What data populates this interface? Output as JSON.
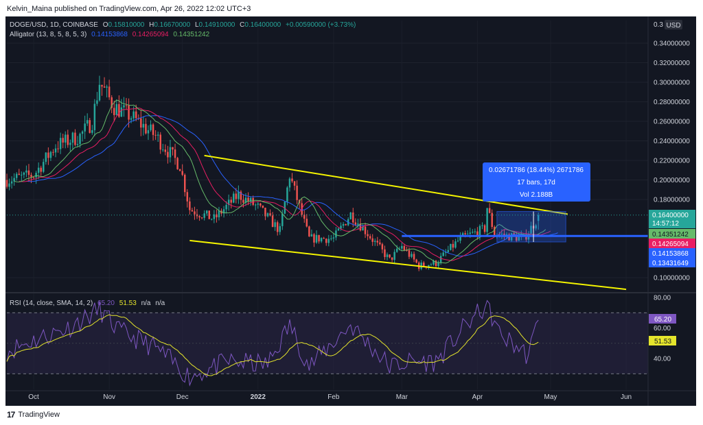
{
  "header": {
    "published": "Kelvin_Maina published on TradingView.com, Apr 26, 2022 12:02 UTC+3"
  },
  "legend": {
    "symbol": "DOGE/USD, 1D, COINBASE",
    "o_label": "O",
    "o_value": "0.15810000",
    "h_label": "H",
    "h_value": "0.16670000",
    "l_label": "L",
    "l_value": "0.14910000",
    "c_label": "C",
    "c_value": "0.16400000",
    "change": "+0.00590000 (+3.73%)",
    "alligator_label": "Alligator (13, 8, 5, 8, 5, 3)",
    "alligator_jaw": "0.14153868",
    "alligator_teeth": "0.14265094",
    "alligator_lips": "0.14351242"
  },
  "rsi_legend": {
    "label": "RSI (14, close, SMA, 14, 2)",
    "rsi": "65.20",
    "sma": "51.53",
    "na1": "n/a",
    "na2": "n/a"
  },
  "measure": {
    "line1": "0.02671786 (18.44%) 2671786",
    "line2": "17 bars, 17d",
    "line3": "Vol 2.188B"
  },
  "price_scale": {
    "currency": "USD",
    "top_label": "0.3",
    "ticks": [
      "0.34000000",
      "0.32000000",
      "0.30000000",
      "0.28000000",
      "0.26000000",
      "0.24000000",
      "0.22000000",
      "0.20000000",
      "0.18000000",
      "0.10000000"
    ],
    "badge_price": "0.16400000",
    "badge_countdown": "14:57:12",
    "badge_lips": "0.14351242",
    "badge_teeth": "0.14265094",
    "badge_jaw": "0.14153868",
    "badge_extra": "0.13431649"
  },
  "rsi_scale": {
    "ticks": [
      "80.00",
      "60.00",
      "40.00"
    ],
    "badge_rsi": "65.20",
    "badge_sma": "51.53"
  },
  "time_axis": {
    "labels": [
      "Oct",
      "Nov",
      "Dec",
      "2022",
      "Feb",
      "Mar",
      "Apr",
      "May",
      "Jun"
    ]
  },
  "footer": {
    "brand": "TradingView",
    "logo": "17"
  },
  "colors": {
    "background": "#131722",
    "up": "#26a69a",
    "down": "#ef5350",
    "jaw": "#2962ff",
    "teeth": "#e91e63",
    "lips": "#66bb6a",
    "trendline": "#f5f500",
    "horizontal": "#2962ff",
    "rsi": "#7e57c2",
    "rsi_sma": "#e5e52c",
    "measure": "#2962ff"
  },
  "chart_data": [
    {
      "type": "candlestick",
      "title": "DOGE/USD, 1D, COINBASE",
      "ylim": [
        0.085,
        0.35
      ],
      "x_range": [
        "2021-09-20",
        "2022-06-10"
      ],
      "checkpoints": [
        {
          "date": "2021-09-20",
          "close": 0.2
        },
        {
          "date": "2021-10-01",
          "close": 0.205
        },
        {
          "date": "2021-10-10",
          "close": 0.235
        },
        {
          "date": "2021-10-20",
          "close": 0.245
        },
        {
          "date": "2021-10-25",
          "close": 0.26
        },
        {
          "date": "2021-10-28",
          "close": 0.3
        },
        {
          "date": "2021-11-03",
          "close": 0.275
        },
        {
          "date": "2021-11-10",
          "close": 0.265
        },
        {
          "date": "2021-11-20",
          "close": 0.245
        },
        {
          "date": "2021-11-30",
          "close": 0.215
        },
        {
          "date": "2021-12-04",
          "close": 0.17
        },
        {
          "date": "2021-12-14",
          "close": 0.16
        },
        {
          "date": "2021-12-24",
          "close": 0.185
        },
        {
          "date": "2022-01-01",
          "close": 0.172
        },
        {
          "date": "2022-01-10",
          "close": 0.148
        },
        {
          "date": "2022-01-14",
          "close": 0.205
        },
        {
          "date": "2022-01-22",
          "close": 0.14
        },
        {
          "date": "2022-02-01",
          "close": 0.14
        },
        {
          "date": "2022-02-08",
          "close": 0.165
        },
        {
          "date": "2022-02-15",
          "close": 0.145
        },
        {
          "date": "2022-02-24",
          "close": 0.118
        },
        {
          "date": "2022-03-01",
          "close": 0.132
        },
        {
          "date": "2022-03-08",
          "close": 0.112
        },
        {
          "date": "2022-03-15",
          "close": 0.115
        },
        {
          "date": "2022-03-25",
          "close": 0.14
        },
        {
          "date": "2022-04-04",
          "close": 0.15
        },
        {
          "date": "2022-04-05",
          "close": 0.172
        },
        {
          "date": "2022-04-08",
          "close": 0.145
        },
        {
          "date": "2022-04-20",
          "close": 0.14
        },
        {
          "date": "2022-04-25",
          "close": 0.1581
        },
        {
          "date": "2022-04-26",
          "close": 0.164
        }
      ],
      "last_bar": {
        "date": "2022-04-26",
        "open": 0.1581,
        "high": 0.1667,
        "low": 0.1491,
        "close": 0.164
      },
      "indicators": {
        "alligator_jaw": 0.14153868,
        "alligator_teeth": 0.14265094,
        "alligator_lips": 0.14351242
      },
      "trendlines": [
        {
          "name": "upper",
          "from": {
            "date": "2021-12-10",
            "price": 0.225
          },
          "to": {
            "date": "2022-05-08",
            "price": 0.165
          }
        },
        {
          "name": "lower",
          "from": {
            "date": "2021-12-04",
            "price": 0.138
          },
          "to": {
            "date": "2022-06-01",
            "price": 0.088
          }
        }
      ],
      "horizontal_line": 0.14265094,
      "measure_range": {
        "from": "2022-04-09",
        "to": "2022-04-26",
        "change": "0.02671786 (18.44%)"
      }
    },
    {
      "type": "line",
      "title": "RSI (14, close, SMA, 14, 2)",
      "ylim": [
        15,
        82
      ],
      "bands": [
        70,
        30
      ],
      "checkpoints": [
        {
          "date": "2021-09-20",
          "rsi": 45
        },
        {
          "date": "2021-10-01",
          "rsi": 52
        },
        {
          "date": "2021-10-15",
          "rsi": 60
        },
        {
          "date": "2021-10-28",
          "rsi": 72
        },
        {
          "date": "2021-11-05",
          "rsi": 58
        },
        {
          "date": "2021-11-20",
          "rsi": 47
        },
        {
          "date": "2021-12-04",
          "rsi": 28
        },
        {
          "date": "2021-12-20",
          "rsi": 38
        },
        {
          "date": "2022-01-05",
          "rsi": 36
        },
        {
          "date": "2022-01-14",
          "rsi": 62
        },
        {
          "date": "2022-01-22",
          "rsi": 35
        },
        {
          "date": "2022-02-08",
          "rsi": 62
        },
        {
          "date": "2022-02-24",
          "rsi": 35
        },
        {
          "date": "2022-03-05",
          "rsi": 38
        },
        {
          "date": "2022-03-15",
          "rsi": 38
        },
        {
          "date": "2022-03-28",
          "rsi": 63
        },
        {
          "date": "2022-04-05",
          "rsi": 75
        },
        {
          "date": "2022-04-10",
          "rsi": 56
        },
        {
          "date": "2022-04-22",
          "rsi": 42
        },
        {
          "date": "2022-04-26",
          "rsi": 65.2
        }
      ],
      "sma_last": 51.53
    }
  ]
}
